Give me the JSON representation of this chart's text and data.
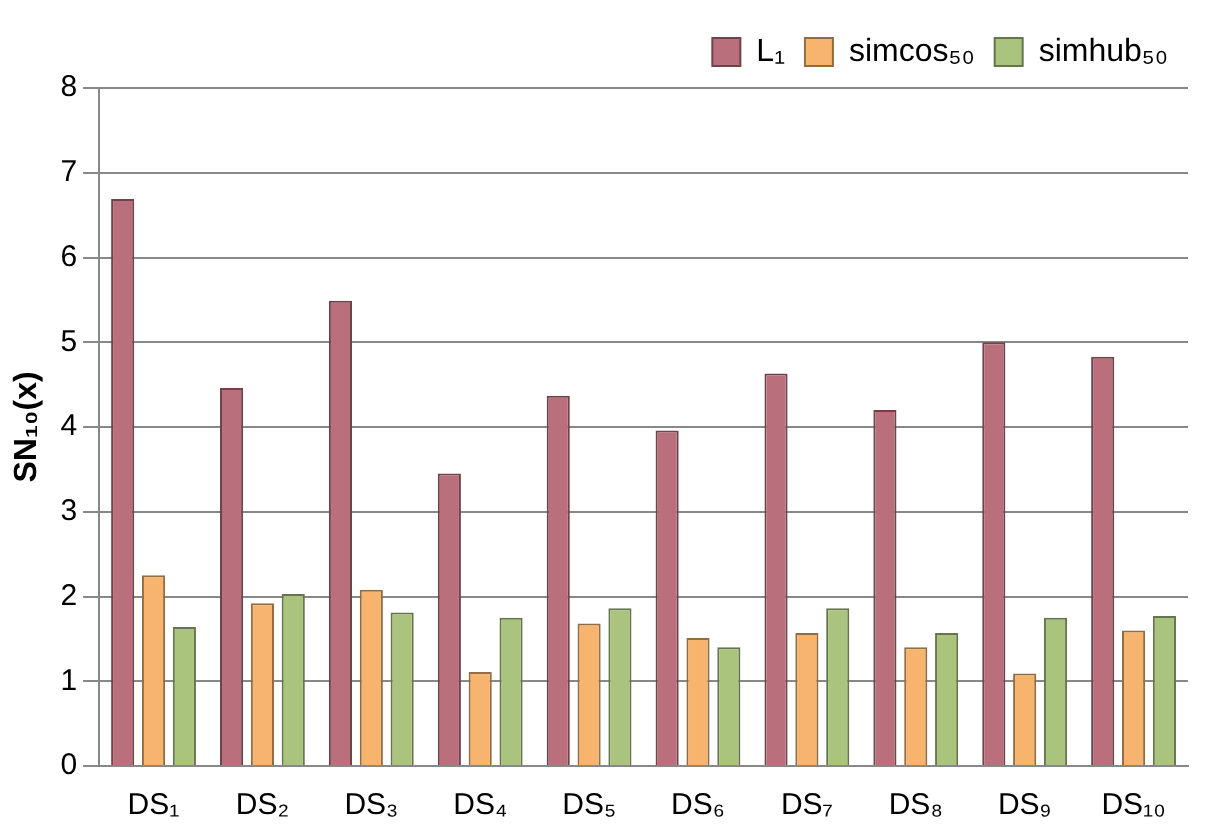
{
  "chart_data": {
    "type": "bar",
    "ylabel": "SN₁₀(x)",
    "categories": [
      "DS₁",
      "DS₂",
      "DS₃",
      "DS₄",
      "DS₅",
      "DS₆",
      "DS₇",
      "DS₈",
      "DS₉",
      "DS₁₀"
    ],
    "series": [
      {
        "name": "L₁",
        "color": "#b9707c",
        "values": [
          6.69,
          4.46,
          5.49,
          3.45,
          4.37,
          3.96,
          4.63,
          4.2,
          5.0,
          4.83
        ]
      },
      {
        "name": "simcos₅₀",
        "color": "#f6b46e",
        "values": [
          2.25,
          1.92,
          2.08,
          1.11,
          1.68,
          1.51,
          1.57,
          1.4,
          1.09,
          1.6
        ]
      },
      {
        "name": "simhub₅₀",
        "color": "#aac47e",
        "values": [
          1.64,
          2.03,
          1.81,
          1.75,
          1.86,
          1.4,
          1.86,
          1.57,
          1.75,
          1.77
        ]
      }
    ],
    "ylim": [
      0,
      8
    ],
    "yticks": [
      0,
      1,
      2,
      3,
      4,
      5,
      6,
      7,
      8
    ],
    "grid": "y",
    "legend": "top right"
  }
}
